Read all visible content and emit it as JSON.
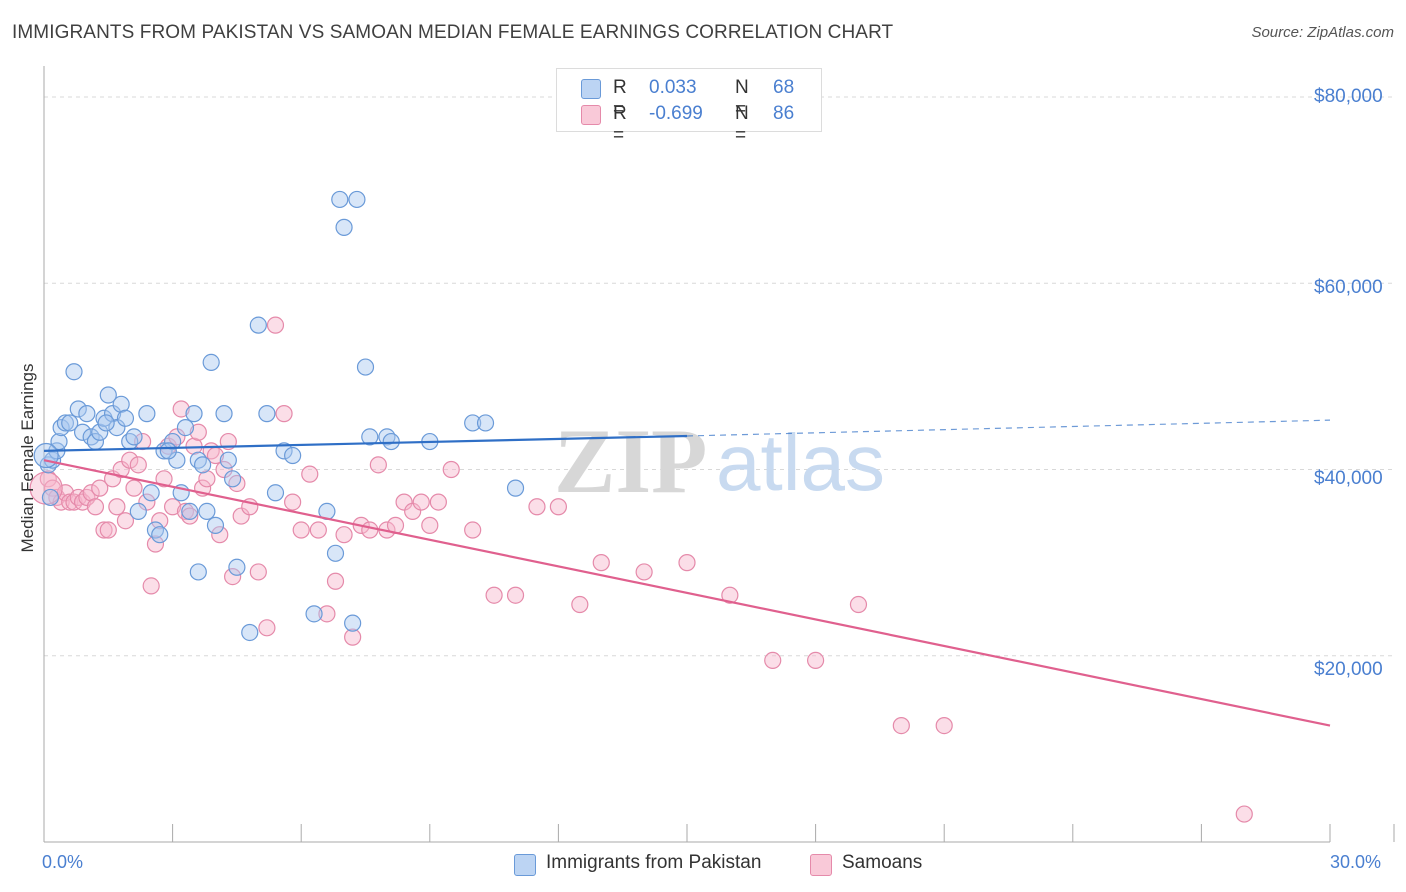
{
  "title": "IMMIGRANTS FROM PAKISTAN VS SAMOAN MEDIAN FEMALE EARNINGS CORRELATION CHART",
  "source": "Source: ZipAtlas.com",
  "watermark": "ZIPatlas",
  "legend": {
    "rows": [
      {
        "r_label": "R =",
        "r_value": "0.033",
        "n_label": "N =",
        "n_value": "68"
      },
      {
        "r_label": "R =",
        "r_value": "-0.699",
        "n_label": "N =",
        "n_value": "86"
      }
    ]
  },
  "bottom_legend": [
    "Immigrants from Pakistan",
    "Samoans"
  ],
  "colors": {
    "blue_fill": "#a9c8f0",
    "blue_stroke": "#6a9ad8",
    "blue_line": "#2f6fc6",
    "pink_fill": "#f6b6cb",
    "pink_stroke": "#e58aaa",
    "pink_line": "#e0608e",
    "accent_text": "#4a7fd0",
    "grid": "#d8d8d8"
  },
  "chart_data": {
    "type": "scatter",
    "title": "IMMIGRANTS FROM PAKISTAN VS SAMOAN MEDIAN FEMALE EARNINGS CORRELATION CHART",
    "xlabel": "",
    "ylabel": "Median Female Earnings",
    "xlim": [
      0,
      30
    ],
    "ylim": [
      0,
      80000
    ],
    "x_tick_labels": [
      "0.0%",
      "30.0%"
    ],
    "y_tick_labels": [
      "$20,000",
      "$40,000",
      "$60,000",
      "$80,000"
    ],
    "y_ticks": [
      20000,
      40000,
      60000,
      80000
    ],
    "grid": true,
    "legend_position": "top-center",
    "series": [
      {
        "name": "Immigrants from Pakistan",
        "color": "#a9c8f0",
        "x": [
          0.1,
          0.2,
          0.3,
          0.35,
          0.4,
          0.5,
          0.6,
          0.7,
          0.8,
          0.9,
          1.0,
          1.1,
          1.2,
          1.3,
          1.4,
          1.5,
          1.6,
          1.7,
          1.8,
          1.9,
          2.0,
          2.1,
          2.2,
          2.4,
          2.5,
          2.6,
          2.7,
          2.8,
          3.0,
          3.1,
          3.2,
          3.3,
          3.4,
          3.5,
          3.6,
          3.7,
          3.8,
          3.9,
          4.0,
          4.2,
          4.3,
          4.5,
          4.8,
          5.0,
          5.2,
          5.4,
          5.6,
          5.8,
          6.3,
          6.6,
          6.8,
          6.9,
          7.0,
          7.2,
          7.3,
          7.5,
          7.6,
          8.0,
          8.1,
          9.0,
          10.0,
          10.3,
          11.0,
          3.6,
          0.15,
          1.45,
          2.9,
          4.4
        ],
        "y": [
          40500,
          41000,
          42000,
          43000,
          44500,
          45000,
          45000,
          50500,
          46500,
          44000,
          46000,
          43500,
          43000,
          44000,
          45500,
          48000,
          46000,
          44500,
          47000,
          45500,
          43000,
          43500,
          35500,
          46000,
          37500,
          33500,
          33000,
          42000,
          43000,
          41000,
          37500,
          44500,
          35500,
          46000,
          41000,
          40500,
          35500,
          51500,
          34000,
          46000,
          41000,
          29500,
          22500,
          55500,
          46000,
          37500,
          42000,
          41500,
          24500,
          35500,
          31000,
          69000,
          66000,
          23500,
          69000,
          51000,
          43500,
          43500,
          43000,
          43000,
          45000,
          45000,
          38000,
          29000,
          37000,
          45000,
          42000,
          39000
        ]
      },
      {
        "name": "Samoans",
        "color": "#f6b6cb",
        "x": [
          0.1,
          0.2,
          0.3,
          0.4,
          0.5,
          0.6,
          0.7,
          0.8,
          0.9,
          1.0,
          1.1,
          1.2,
          1.3,
          1.4,
          1.5,
          1.6,
          1.7,
          1.8,
          1.9,
          2.0,
          2.1,
          2.2,
          2.3,
          2.4,
          2.5,
          2.6,
          2.7,
          2.8,
          2.9,
          3.0,
          3.1,
          3.2,
          3.3,
          3.4,
          3.5,
          3.6,
          3.7,
          3.8,
          3.9,
          4.0,
          4.1,
          4.2,
          4.3,
          4.4,
          4.5,
          4.6,
          4.8,
          5.0,
          5.2,
          5.4,
          5.6,
          5.8,
          6.0,
          6.2,
          6.4,
          6.6,
          6.8,
          7.0,
          7.2,
          7.4,
          7.6,
          7.8,
          8.0,
          8.2,
          8.4,
          8.6,
          8.8,
          9.0,
          9.2,
          9.5,
          10.0,
          10.5,
          11.0,
          11.5,
          12.0,
          12.5,
          13.0,
          14.0,
          15.0,
          16.0,
          17.0,
          18.0,
          19.0,
          20.0,
          21.0,
          28.0
        ],
        "y": [
          39000,
          38000,
          37000,
          36500,
          37500,
          36500,
          36500,
          37000,
          36500,
          37000,
          37500,
          36000,
          38000,
          33500,
          33500,
          39000,
          36000,
          40000,
          34500,
          41000,
          38000,
          40500,
          43000,
          36500,
          27500,
          32000,
          34500,
          39000,
          42500,
          36000,
          43500,
          46500,
          35500,
          35000,
          42500,
          44000,
          38000,
          39000,
          42000,
          41500,
          33000,
          40000,
          43000,
          28500,
          38500,
          35000,
          36000,
          29000,
          23000,
          55500,
          46000,
          36500,
          33500,
          39500,
          33500,
          24500,
          28000,
          33000,
          22000,
          34000,
          33500,
          40500,
          33500,
          34000,
          36500,
          35500,
          36500,
          34000,
          36500,
          40000,
          33500,
          26500,
          26500,
          36000,
          36000,
          25500,
          30000,
          29000,
          30000,
          26500,
          19500,
          19500,
          25500,
          12500,
          12500,
          3000
        ]
      }
    ],
    "trend_lines": [
      {
        "series": "Immigrants from Pakistan",
        "x_start": 0,
        "y_start": 42000,
        "x_end": 15,
        "y_end": 43600,
        "dashed_x_end": 30,
        "dashed_y_end": 45300
      },
      {
        "series": "Samoans",
        "x_start": 0,
        "y_start": 41000,
        "x_end": 30,
        "y_end": 12500
      }
    ]
  }
}
